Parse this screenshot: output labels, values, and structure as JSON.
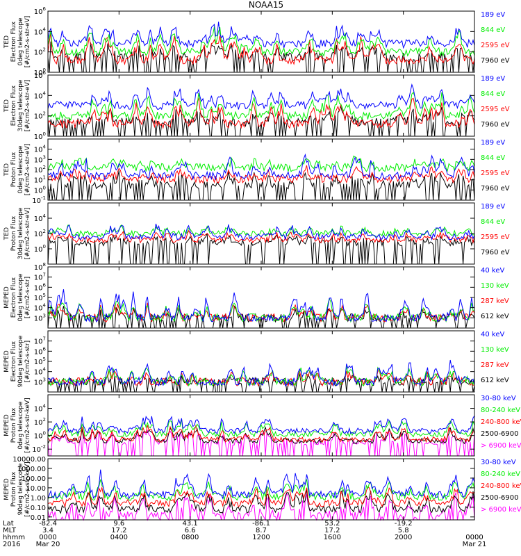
{
  "title": "NOAA15",
  "colors": {
    "black": "#000000",
    "red": "#ff0000",
    "green": "#00ee00",
    "blue": "#0000ff",
    "magenta": "#ff00ff",
    "axis": "#000000"
  },
  "footer": {
    "row_labels": [
      "Lat",
      "MLT",
      "hhmm",
      "2016"
    ],
    "ticks": [
      {
        "lat": "-82.4",
        "mlt": "3.4",
        "hhmm": "0000",
        "date": "Mar 20"
      },
      {
        "lat": "9.6",
        "mlt": "17.2",
        "hhmm": "0400",
        "date": ""
      },
      {
        "lat": "43.1",
        "mlt": "6.6",
        "hhmm": "0800",
        "date": ""
      },
      {
        "lat": "-86.1",
        "mlt": "8.7",
        "hhmm": "1200",
        "date": ""
      },
      {
        "lat": "53.2",
        "mlt": "17.2",
        "hhmm": "1600",
        "date": ""
      },
      {
        "lat": "-19.2",
        "mlt": "5.8",
        "hhmm": "2000",
        "date": ""
      },
      {
        "lat": "",
        "mlt": "",
        "hhmm": "0000",
        "date": "Mar 21"
      }
    ]
  },
  "chart_data": [
    {
      "type": "line",
      "title": "",
      "instrument": "TED",
      "ylabel": [
        "TED",
        "Electron Flux",
        "0deg telescope",
        "[#/cm2-s-str-eV]"
      ],
      "yscale": "log",
      "ylim": [
        1,
        1000000
      ],
      "yticks": [
        {
          "v": 1,
          "t": "10^0"
        },
        {
          "v": 100,
          "t": "10^2"
        },
        {
          "v": 10000,
          "t": "10^4"
        },
        {
          "v": 1000000,
          "t": "10^6"
        }
      ],
      "series": [
        {
          "name": "7960 eV",
          "color": "black",
          "base": 1.5,
          "spike": 3.0,
          "seed": 11
        },
        {
          "name": "2595 eV",
          "color": "red",
          "base": 1.2,
          "spike": 4.0,
          "seed": 12
        },
        {
          "name": "844 eV",
          "color": "green",
          "base": 2.0,
          "spike": 4.6,
          "seed": 13
        },
        {
          "name": "189 eV",
          "color": "blue",
          "base": 2.8,
          "spike": 5.0,
          "seed": 14
        }
      ]
    },
    {
      "type": "line",
      "title": "",
      "instrument": "TED",
      "ylabel": [
        "TED",
        "Electron Flux",
        "30deg telescope",
        "[#/cm2-s-str-eV]"
      ],
      "yscale": "log",
      "ylim": [
        1,
        1000000
      ],
      "yticks": [
        {
          "v": 1,
          "t": "10^0"
        },
        {
          "v": 100,
          "t": "10^2"
        },
        {
          "v": 10000,
          "t": "10^4"
        },
        {
          "v": 1000000,
          "t": "10^6"
        }
      ],
      "series": [
        {
          "name": "7960 eV",
          "color": "black",
          "base": 1.4,
          "spike": 3.0,
          "seed": 21
        },
        {
          "name": "2595 eV",
          "color": "red",
          "base": 1.2,
          "spike": 4.0,
          "seed": 22
        },
        {
          "name": "844 eV",
          "color": "green",
          "base": 2.0,
          "spike": 4.6,
          "seed": 23
        },
        {
          "name": "189 eV",
          "color": "blue",
          "base": 3.0,
          "spike": 5.0,
          "seed": 24
        }
      ]
    },
    {
      "type": "line",
      "title": "",
      "instrument": "TED",
      "ylabel": [
        "TED",
        "Proton Flux",
        "0deg telescope",
        "[#/cm2-s-str-eV]"
      ],
      "yscale": "log",
      "ylim": [
        0.1,
        100000
      ],
      "yticks": [
        {
          "v": 0.1,
          "t": "10^-1"
        },
        {
          "v": 1,
          "t": "10^0"
        },
        {
          "v": 10,
          "t": "10^1"
        },
        {
          "v": 100,
          "t": "10^2"
        },
        {
          "v": 1000,
          "t": "10^3"
        },
        {
          "v": 10000,
          "t": "10^4"
        }
      ],
      "series": [
        {
          "name": "7960 eV",
          "color": "black",
          "base": 0.5,
          "spike": 2.0,
          "seed": 31
        },
        {
          "name": "2595 eV",
          "color": "red",
          "base": 1.1,
          "spike": 2.2,
          "seed": 32
        },
        {
          "name": "844 eV",
          "color": "green",
          "base": 2.2,
          "spike": 3.2,
          "seed": 33
        },
        {
          "name": "189 eV",
          "color": "blue",
          "base": 1.4,
          "spike": 3.6,
          "seed": 34
        }
      ]
    },
    {
      "type": "line",
      "title": "",
      "instrument": "TED",
      "ylabel": [
        "TED",
        "Proton Flux",
        "30deg telescope",
        "[#/cm2-s-str-eV]"
      ],
      "yscale": "log",
      "ylim": [
        0.01,
        1000000
      ],
      "yticks": [
        {
          "v": 1,
          "t": "10^0"
        },
        {
          "v": 100,
          "t": "10^2"
        },
        {
          "v": 10000,
          "t": "10^4"
        }
      ],
      "series": [
        {
          "name": "7960 eV",
          "color": "black",
          "base": 0.8,
          "spike": 2.0,
          "seed": 41
        },
        {
          "name": "2595 eV",
          "color": "red",
          "base": 1.2,
          "spike": 2.4,
          "seed": 42
        },
        {
          "name": "844 eV",
          "color": "green",
          "base": 2.0,
          "spike": 3.0,
          "seed": 43
        },
        {
          "name": "189 eV",
          "color": "blue",
          "base": 1.6,
          "spike": 3.4,
          "seed": 44
        }
      ]
    },
    {
      "type": "line",
      "title": "",
      "instrument": "MEPED",
      "ylabel": [
        "MEPED",
        "Electron Flux",
        "0deg telescope",
        "[#/cm2-s-str]"
      ],
      "yscale": "log",
      "ylim": [
        100,
        100000000
      ],
      "yticks": [
        {
          "v": 1000,
          "t": "10^3"
        },
        {
          "v": 10000,
          "t": "10^4"
        },
        {
          "v": 100000,
          "t": "10^5"
        },
        {
          "v": 1000000,
          "t": "10^6"
        },
        {
          "v": 10000000,
          "t": "10^7"
        },
        {
          "v": 100000000,
          "t": "10^8"
        }
      ],
      "series": [
        {
          "name": "612 keV",
          "color": "black",
          "base": 3.0,
          "spike": 4.0,
          "seed": 51
        },
        {
          "name": "287 keV",
          "color": "red",
          "base": 3.0,
          "spike": 4.5,
          "seed": 52
        },
        {
          "name": "130 keV",
          "color": "green",
          "base": 3.0,
          "spike": 5.0,
          "seed": 53
        },
        {
          "name": "40 keV",
          "color": "blue",
          "base": 3.0,
          "spike": 6.0,
          "seed": 54
        }
      ]
    },
    {
      "type": "line",
      "title": "",
      "instrument": "MEPED",
      "ylabel": [
        "MEPED",
        "Electron Flux",
        "90deg telescope",
        "[#/cm2-s-str]"
      ],
      "yscale": "log",
      "ylim": [
        100,
        100000000
      ],
      "yticks": [
        {
          "v": 1000,
          "t": "10^3"
        },
        {
          "v": 10000,
          "t": "10^4"
        },
        {
          "v": 100000,
          "t": "10^5"
        },
        {
          "v": 1000000,
          "t": "10^6"
        },
        {
          "v": 10000000,
          "t": "10^7"
        }
      ],
      "series": [
        {
          "name": "612 keV",
          "color": "black",
          "base": 3.0,
          "spike": 3.5,
          "seed": 61
        },
        {
          "name": "287 keV",
          "color": "red",
          "base": 3.0,
          "spike": 4.0,
          "seed": 62
        },
        {
          "name": "130 keV",
          "color": "green",
          "base": 3.0,
          "spike": 4.5,
          "seed": 63
        },
        {
          "name": "40 keV",
          "color": "blue",
          "base": 3.0,
          "spike": 5.0,
          "seed": 64
        }
      ]
    },
    {
      "type": "line",
      "title": "",
      "instrument": "MEPED",
      "ylabel": [
        "MEPED",
        "Proton Flux",
        "0deg telescope",
        "[#/cm2-s-str-keV]"
      ],
      "yscale": "log",
      "ylim": [
        0.001,
        1000000
      ],
      "yticks": [
        {
          "v": 0.01,
          "t": "10^-2"
        },
        {
          "v": 1,
          "t": "10^0"
        },
        {
          "v": 100,
          "t": "10^2"
        },
        {
          "v": 10000,
          "t": "10^4"
        }
      ],
      "series": [
        {
          "name": "> 6900 keV",
          "color": "magenta",
          "base": -1.0,
          "spike": 1.0,
          "seed": 71
        },
        {
          "name": "2500-6900",
          "color": "black",
          "base": -0.8,
          "spike": 1.2,
          "seed": 72
        },
        {
          "name": "240-800 keV",
          "color": "red",
          "base": -0.6,
          "spike": 1.5,
          "seed": 73
        },
        {
          "name": "80-240 keV",
          "color": "green",
          "base": 0.2,
          "spike": 2.5,
          "seed": 74
        },
        {
          "name": "30-80 keV",
          "color": "blue",
          "base": 0.7,
          "spike": 3.0,
          "seed": 75
        }
      ]
    },
    {
      "type": "line",
      "title": "",
      "instrument": "MEPED",
      "ylabel": [
        "MEPED",
        "Proton Flux",
        "90deg telescope",
        "[#/cm2-s-str-keV]"
      ],
      "yscale": "log",
      "ylim": [
        0.005,
        10000
      ],
      "yticks": [
        {
          "v": 0.01,
          "t": "0.01"
        },
        {
          "v": 0.1,
          "t": "0.10"
        },
        {
          "v": 1,
          "t": "1.00"
        },
        {
          "v": 10,
          "t": "10.00"
        },
        {
          "v": 100,
          "t": "100.00"
        },
        {
          "v": 1000,
          "t": "1000.00"
        },
        {
          "v": 10000,
          "t": "10000.00"
        }
      ],
      "series": [
        {
          "name": "> 6900 keV",
          "color": "magenta",
          "base": -1.7,
          "spike": 0.8,
          "seed": 81
        },
        {
          "name": "2500-6900",
          "color": "black",
          "base": -1.2,
          "spike": 1.0,
          "seed": 82
        },
        {
          "name": "240-800 keV",
          "color": "red",
          "base": -0.6,
          "spike": 1.4,
          "seed": 83
        },
        {
          "name": "80-240 keV",
          "color": "green",
          "base": 0.1,
          "spike": 2.0,
          "seed": 84
        },
        {
          "name": "30-80 keV",
          "color": "blue",
          "base": 0.3,
          "spike": 2.8,
          "seed": 85
        }
      ]
    }
  ]
}
